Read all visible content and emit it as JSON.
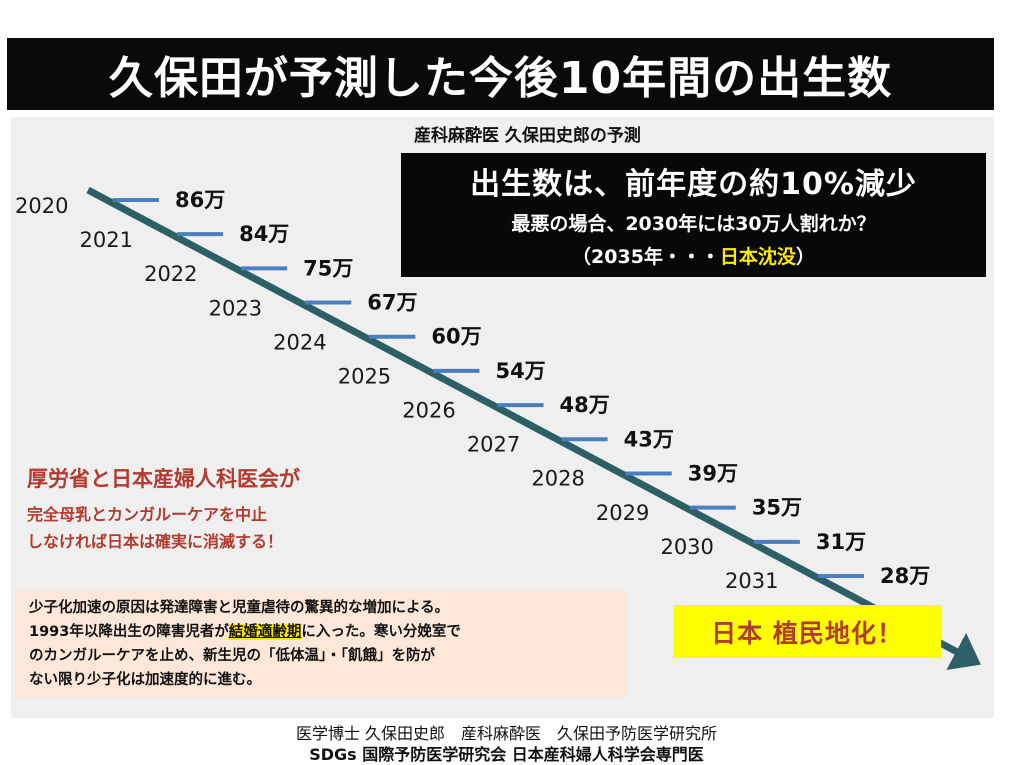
{
  "title": "久保田が予測した今後10年間の出生数",
  "subtitle": "産科麻酔医 久保田史郎の予測",
  "headline": {
    "main": "出生数は、前年度の約10%減少",
    "sub1": "最悪の場合、2030年には30万人割れか？",
    "sub2_prefix": "（2035年・・・",
    "sub2_highlight": "日本沈没",
    "sub2_suffix": "）"
  },
  "warning": {
    "heading": "厚労省と日本産婦人科医会が",
    "line1": "完全母乳とカンガルーケアを中止",
    "line2": "しなければ日本は確実に消滅する！"
  },
  "note": {
    "line1": "少子化加速の原因は発達障害と児童虐待の驚異的な増加による。",
    "line2_prefix": "1993年以降出生の障害児者が",
    "line2_highlight": "結婚適齢期",
    "line2_suffix": "に入った。寒い分娩室で",
    "line3": "のカンガルーケアを止め、新生児の「低体温」・「飢餓」を防が",
    "line4": "ない限り少子化は加速度的に進む。"
  },
  "colony": "日本 植民地化！",
  "footer": {
    "line1": "医学博士 久保田史郎　産科麻酔医　久保田予防医学研究所",
    "line2": "SDGs 国際予防医学研究会 日本産科婦人科学会専門医"
  },
  "colors": {
    "arrow": "#2d5f66",
    "tick": "#4a7fbf",
    "warning": "#b23a2e",
    "highlight": "#ffeb00"
  },
  "chart_data": {
    "type": "line",
    "x": [
      "2020",
      "2021",
      "2022",
      "2023",
      "2024",
      "2025",
      "2026",
      "2027",
      "2028",
      "2029",
      "2030",
      "2031"
    ],
    "values": [
      86,
      84,
      75,
      67,
      60,
      54,
      48,
      43,
      39,
      35,
      31,
      28
    ],
    "value_labels": [
      "86万",
      "84万",
      "75万",
      "67万",
      "60万",
      "54万",
      "48万",
      "43万",
      "39万",
      "35万",
      "31万",
      "28万"
    ],
    "unit": "万"
  }
}
